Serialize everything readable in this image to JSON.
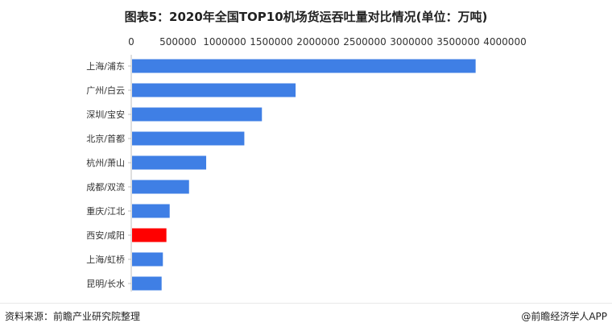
{
  "title": "图表5：2020年全国TOP10机场货运吞吐量对比情况(单位：万吨)",
  "source": "资料来源：前瞻产业研究院整理",
  "brand": "@前瞻经济学人APP",
  "chart_data": {
    "type": "bar",
    "orientation": "horizontal",
    "title": "图表5：2020年全国TOP10机场货运吞吐量对比情况(单位：万吨)",
    "categories": [
      "上海/浦东",
      "广州/白云",
      "深圳/宝安",
      "北京/首都",
      "杭州/萧山",
      "成都/双流",
      "重庆/江北",
      "西安/咸阳",
      "上海/虹桥",
      "昆明/长水"
    ],
    "values": [
      3686627,
      1759281,
      1398782,
      1210441,
      802049,
      618527,
      411271,
      376311,
      338541,
      324987
    ],
    "bar_colors": [
      "#3f7fe5",
      "#3f7fe5",
      "#3f7fe5",
      "#3f7fe5",
      "#3f7fe5",
      "#3f7fe5",
      "#3f7fe5",
      "#ff0000",
      "#3f7fe5",
      "#3f7fe5"
    ],
    "xlim": [
      0,
      4000000
    ],
    "xticks": [
      "0",
      "500000",
      "1000000",
      "1500000",
      "2000000",
      "2500000",
      "3000000",
      "3500000",
      "4000000"
    ],
    "axis_position": "top",
    "grid": false
  }
}
